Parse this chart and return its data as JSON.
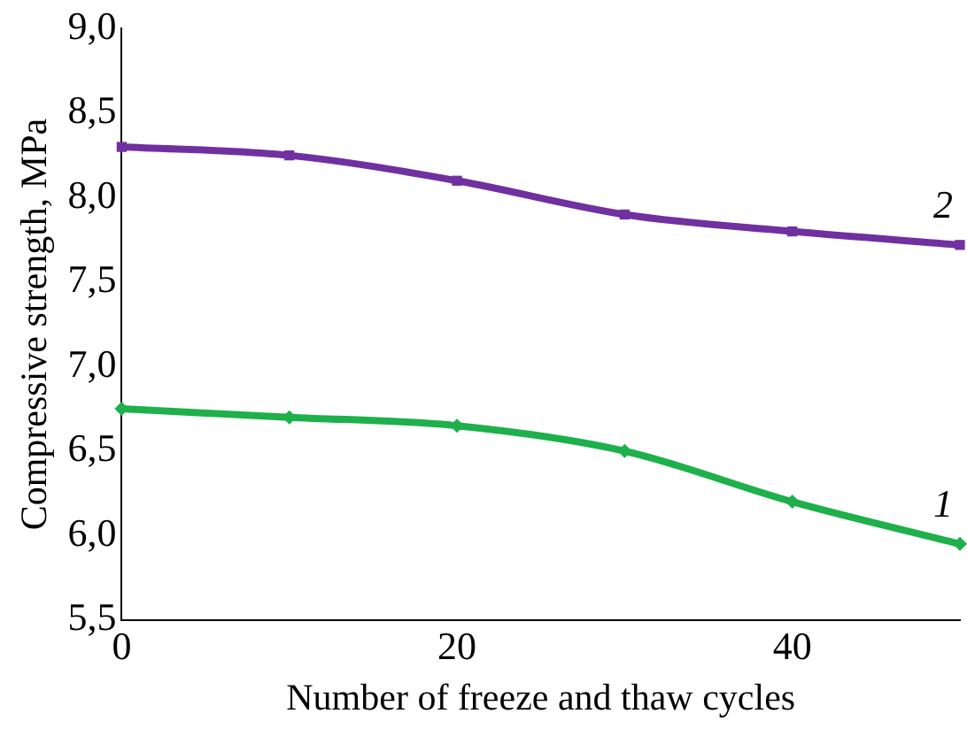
{
  "chart_data": {
    "type": "line",
    "xlabel": "Number of freeze and thaw cycles",
    "ylabel": "Compressive strength, MPa",
    "x": [
      0,
      10,
      20,
      30,
      40,
      50
    ],
    "series": [
      {
        "name": "1",
        "color": "#1db04b",
        "marker": "diamond",
        "values": [
          6.75,
          6.7,
          6.65,
          6.5,
          6.2,
          5.95
        ]
      },
      {
        "name": "2",
        "color": "#7030a0",
        "marker": "square",
        "values": [
          8.3,
          8.25,
          8.1,
          7.9,
          7.8,
          7.72
        ]
      }
    ],
    "xlim": [
      0,
      50
    ],
    "xticks": [
      0,
      20,
      40
    ],
    "ylim": [
      5.5,
      9.0
    ],
    "yticks": [
      {
        "value": 5.5,
        "label": "5,5"
      },
      {
        "value": 6,
        "label": "6,0"
      },
      {
        "value": 6.5,
        "label": "6,5"
      },
      {
        "value": 7,
        "label": "7,0"
      },
      {
        "value": 7.5,
        "label": "7,5"
      },
      {
        "value": 8,
        "label": "8,0"
      },
      {
        "value": 8.5,
        "label": "8,5"
      },
      {
        "value": 9,
        "label": "9,0"
      }
    ],
    "grid": false,
    "legend": false
  }
}
